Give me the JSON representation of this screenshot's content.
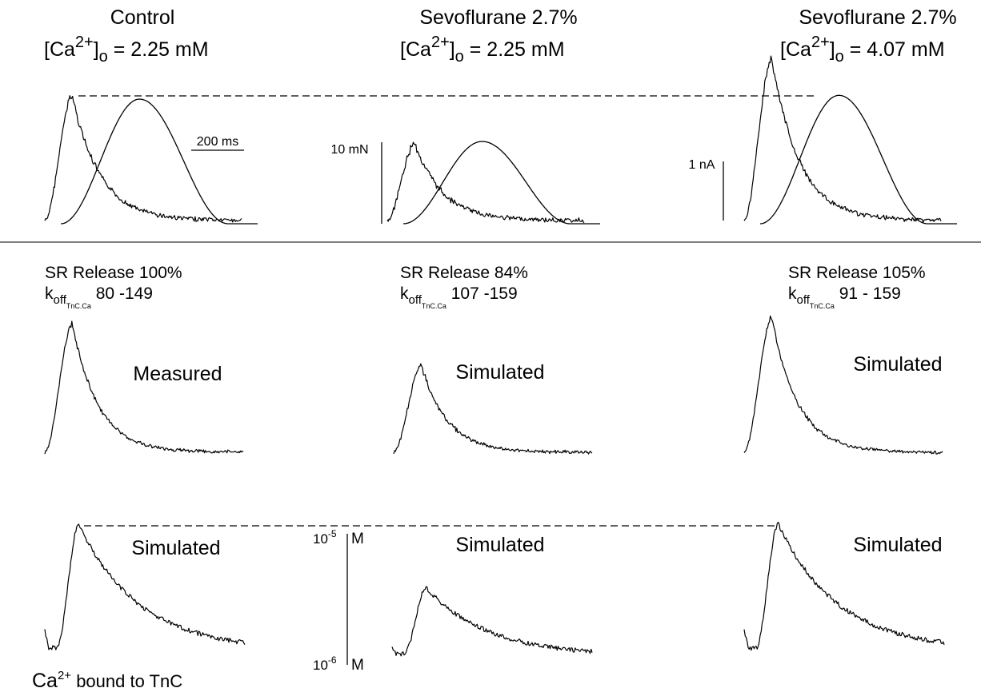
{
  "columns": [
    {
      "title": "Control",
      "ca_label": "[Ca",
      "ca_sup": "2+",
      "ca_sub": "o",
      "ca_value": " = 2.25 mM",
      "sr_release": "SR Release 100%",
      "koff_k": "k",
      "koff_sub": "off",
      "koff_subsub": "TnC.Ca",
      "koff_value": " 80 -149",
      "middle_label": "Measured",
      "bottom_label": "Simulated"
    },
    {
      "title": "Sevoflurane 2.7%",
      "ca_label": "[Ca",
      "ca_sup": "2+",
      "ca_sub": "o",
      "ca_value": " = 2.25 mM",
      "sr_release": "SR Release 84%",
      "koff_k": "k",
      "koff_sub": "off",
      "koff_subsub": "TnC.Ca",
      "koff_value": " 107 -159",
      "middle_label": "Simulated",
      "bottom_label": "Simulated"
    },
    {
      "title": "Sevoflurane 2.7%",
      "ca_label": "[Ca",
      "ca_sup": "2+",
      "ca_sub": "o",
      "ca_value": " = 4.07 mM",
      "sr_release": "SR Release 105%",
      "koff_k": "k",
      "koff_sub": "off",
      "koff_subsub": "TnC.Ca",
      "koff_value": " 91 - 159",
      "middle_label": "Simulated",
      "bottom_label": "Simulated"
    }
  ],
  "scale_bars": {
    "time": "200 ms",
    "force": "10 mN",
    "current": "1 nA",
    "conc_top_base": "10",
    "conc_top_exp": "-5",
    "conc_top_unit": "M",
    "conc_bottom_base": "10",
    "conc_bottom_exp": "-6",
    "conc_bottom_unit": "M"
  },
  "bottom_caption": {
    "base": "Ca",
    "sup": "2+",
    "rest": " bound to TnC"
  },
  "trace_amplitudes": {
    "transient_peak": [
      1.0,
      0.62,
      1.3
    ],
    "force_peak": [
      1.0,
      0.66,
      1.03
    ],
    "middle_transient_peak": [
      1.0,
      0.68,
      1.05
    ],
    "bound_peak": [
      1.0,
      0.54,
      1.0
    ]
  }
}
